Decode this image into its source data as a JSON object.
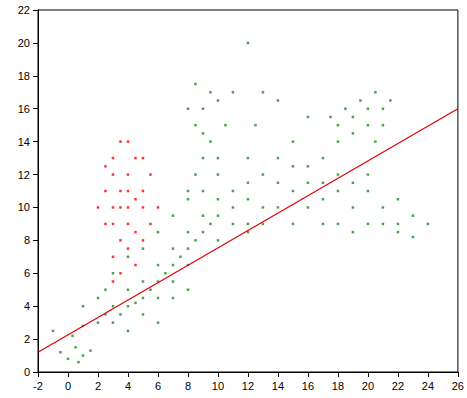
{
  "chart_data": {
    "type": "scatter",
    "xlim": [
      -2,
      26
    ],
    "xticks": [
      -2,
      0,
      2,
      4,
      6,
      8,
      10,
      12,
      14,
      16,
      18,
      20,
      22,
      24,
      26
    ],
    "ylim": [
      0,
      22
    ],
    "yticks": [
      0,
      2,
      4,
      6,
      8,
      10,
      12,
      14,
      16,
      18,
      20,
      22
    ],
    "grid": false,
    "series": [
      {
        "type": "scatter",
        "color": "#1e8c1e",
        "marker": "square",
        "x": [
          -0.5,
          0,
          0.5,
          1,
          0.3,
          1,
          -1,
          0.7,
          1.5,
          2,
          2.5,
          3,
          3,
          3.5,
          4,
          4,
          4.5,
          5,
          5,
          5.5,
          6,
          6,
          6.5,
          7,
          7,
          7.5,
          8,
          8,
          8.5,
          9,
          9,
          9.5,
          10,
          10,
          11,
          11,
          12,
          12,
          3,
          4,
          5,
          6,
          2.5,
          7,
          8,
          9,
          10,
          6,
          8,
          10,
          12,
          8,
          8.5,
          9,
          9.5,
          8.5,
          9,
          9.5,
          8.5,
          10,
          10.5,
          9,
          10,
          11,
          8,
          12,
          13,
          14,
          12.5,
          14,
          15,
          16,
          13,
          12,
          16,
          17,
          12,
          13,
          14,
          14,
          15,
          15,
          16,
          16,
          17,
          17,
          18,
          18,
          18,
          19,
          19,
          20,
          20,
          21,
          21,
          22,
          22,
          23,
          23,
          22,
          20,
          13,
          11,
          15,
          17,
          19,
          24,
          18,
          18.5,
          19,
          19,
          19.5,
          20,
          20,
          20.5,
          21,
          21,
          18,
          20.5,
          21.5,
          17.5,
          4,
          5,
          6,
          7,
          7,
          8,
          1,
          2
        ],
        "values": [
          1.2,
          0.8,
          1.5,
          1,
          2.2,
          2.8,
          2.5,
          0.6,
          1.3,
          3,
          3.5,
          3,
          4,
          3.5,
          4,
          5,
          4.2,
          4.5,
          5.5,
          5,
          5.5,
          6.5,
          6,
          6.5,
          7.5,
          7,
          7.5,
          8.5,
          8,
          8.5,
          9.5,
          9,
          9.5,
          10.5,
          10,
          11,
          10.5,
          11.5,
          6,
          7,
          7.5,
          8.5,
          5,
          9.5,
          10.5,
          11,
          12,
          4.5,
          6.5,
          8,
          9,
          11,
          12,
          13,
          14,
          15,
          16,
          17,
          17.5,
          16.5,
          15,
          14.5,
          13,
          17,
          16,
          13,
          12,
          13,
          15,
          16.5,
          14,
          12.5,
          17,
          20,
          15.5,
          13,
          8.5,
          9,
          10,
          11.5,
          9,
          11,
          10,
          11.5,
          9,
          10.5,
          9,
          11,
          12,
          10,
          8.5,
          9,
          11,
          9,
          10,
          9,
          8.5,
          9.5,
          8.2,
          10.5,
          12,
          10,
          9,
          12.5,
          11.5,
          11.5,
          9,
          15,
          16,
          15.5,
          14.5,
          16.5,
          15,
          16,
          17,
          16,
          15,
          14,
          14,
          16.5,
          15.5,
          2.5,
          3.5,
          3,
          4.5,
          5.5,
          5,
          4,
          4.5
        ]
      },
      {
        "type": "scatter",
        "color": "#ff0000",
        "marker": "square",
        "x": [
          3,
          3.5,
          4,
          3,
          4,
          3.5,
          4,
          3,
          4.5,
          3.5,
          2.5,
          2.5,
          5,
          5,
          4.5,
          3,
          4,
          3.5,
          4.5,
          2,
          5.5,
          3,
          4,
          3.5,
          5,
          5.5,
          2.5,
          4,
          3,
          4.5,
          6,
          5
        ],
        "values": [
          7,
          8,
          9,
          10,
          10,
          11,
          12,
          12,
          13,
          14,
          9,
          11,
          10,
          11,
          8.5,
          9,
          11,
          10,
          10.5,
          10,
          9,
          13,
          7.5,
          6,
          8,
          12,
          12.5,
          14,
          5.5,
          6.5,
          10,
          13
        ]
      },
      {
        "type": "line",
        "color": "#e00000",
        "line_style": "solid",
        "x": [
          -2,
          26
        ],
        "values": [
          1.2,
          16.0
        ]
      }
    ]
  }
}
